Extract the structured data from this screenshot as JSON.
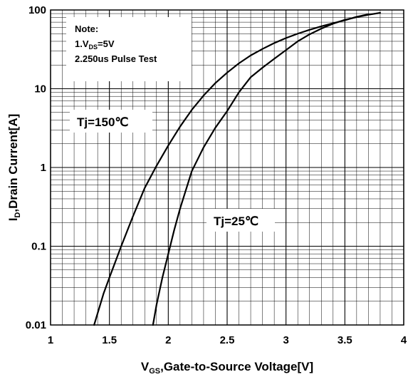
{
  "chart_data": {
    "type": "line",
    "xlabel_main": "V",
    "xlabel_sub": "GS",
    "xlabel_rest": ",Gate-to-Source Voltage[V]",
    "ylabel_main": "I",
    "ylabel_sub": "D",
    "ylabel_rest": ",Drain Current[A]",
    "x_ticks": [
      "1",
      "1.5",
      "2",
      "2.5",
      "3",
      "3.5",
      "4"
    ],
    "y_ticks": [
      "0.01",
      "0.1",
      "1",
      "10",
      "100"
    ],
    "xlim": [
      1,
      4
    ],
    "ylim": [
      0.01,
      100
    ],
    "y_scale": "log",
    "grid": true,
    "note": {
      "title": "Note:",
      "line1_main": "1.V",
      "line1_sub": "DS",
      "line1_rest": "=5V",
      "line2": "2.250us Pulse Test"
    },
    "series": [
      {
        "name": "Tj=150℃",
        "x": [
          1.37,
          1.45,
          1.5,
          1.6,
          1.7,
          1.8,
          1.9,
          2.0,
          2.1,
          2.2,
          2.3,
          2.4,
          2.5,
          2.6,
          2.7,
          2.8,
          2.9,
          3.0,
          3.1,
          3.2,
          3.3,
          3.4,
          3.5,
          3.6,
          3.7
        ],
        "y": [
          0.01,
          0.025,
          0.04,
          0.1,
          0.24,
          0.55,
          1.05,
          1.9,
          3.3,
          5.4,
          8.2,
          11.8,
          16,
          21,
          26.5,
          32,
          38,
          44,
          50,
          56,
          62,
          68,
          74,
          82,
          88
        ]
      },
      {
        "name": "Tj=25℃",
        "x": [
          1.87,
          1.9,
          1.95,
          2.0,
          2.05,
          2.1,
          2.2,
          2.3,
          2.4,
          2.5,
          2.6,
          2.7,
          2.8,
          2.9,
          3.0,
          3.1,
          3.2,
          3.3,
          3.4,
          3.5,
          3.6,
          3.7,
          3.8
        ],
        "y": [
          0.01,
          0.018,
          0.04,
          0.08,
          0.16,
          0.3,
          0.9,
          1.8,
          3.2,
          5.2,
          9,
          14,
          18.5,
          24,
          31,
          40,
          49,
          58,
          67,
          75,
          81,
          87,
          92
        ]
      }
    ]
  },
  "colors": {
    "line": "#000000",
    "grid": "#000000",
    "background": "#ffffff"
  }
}
